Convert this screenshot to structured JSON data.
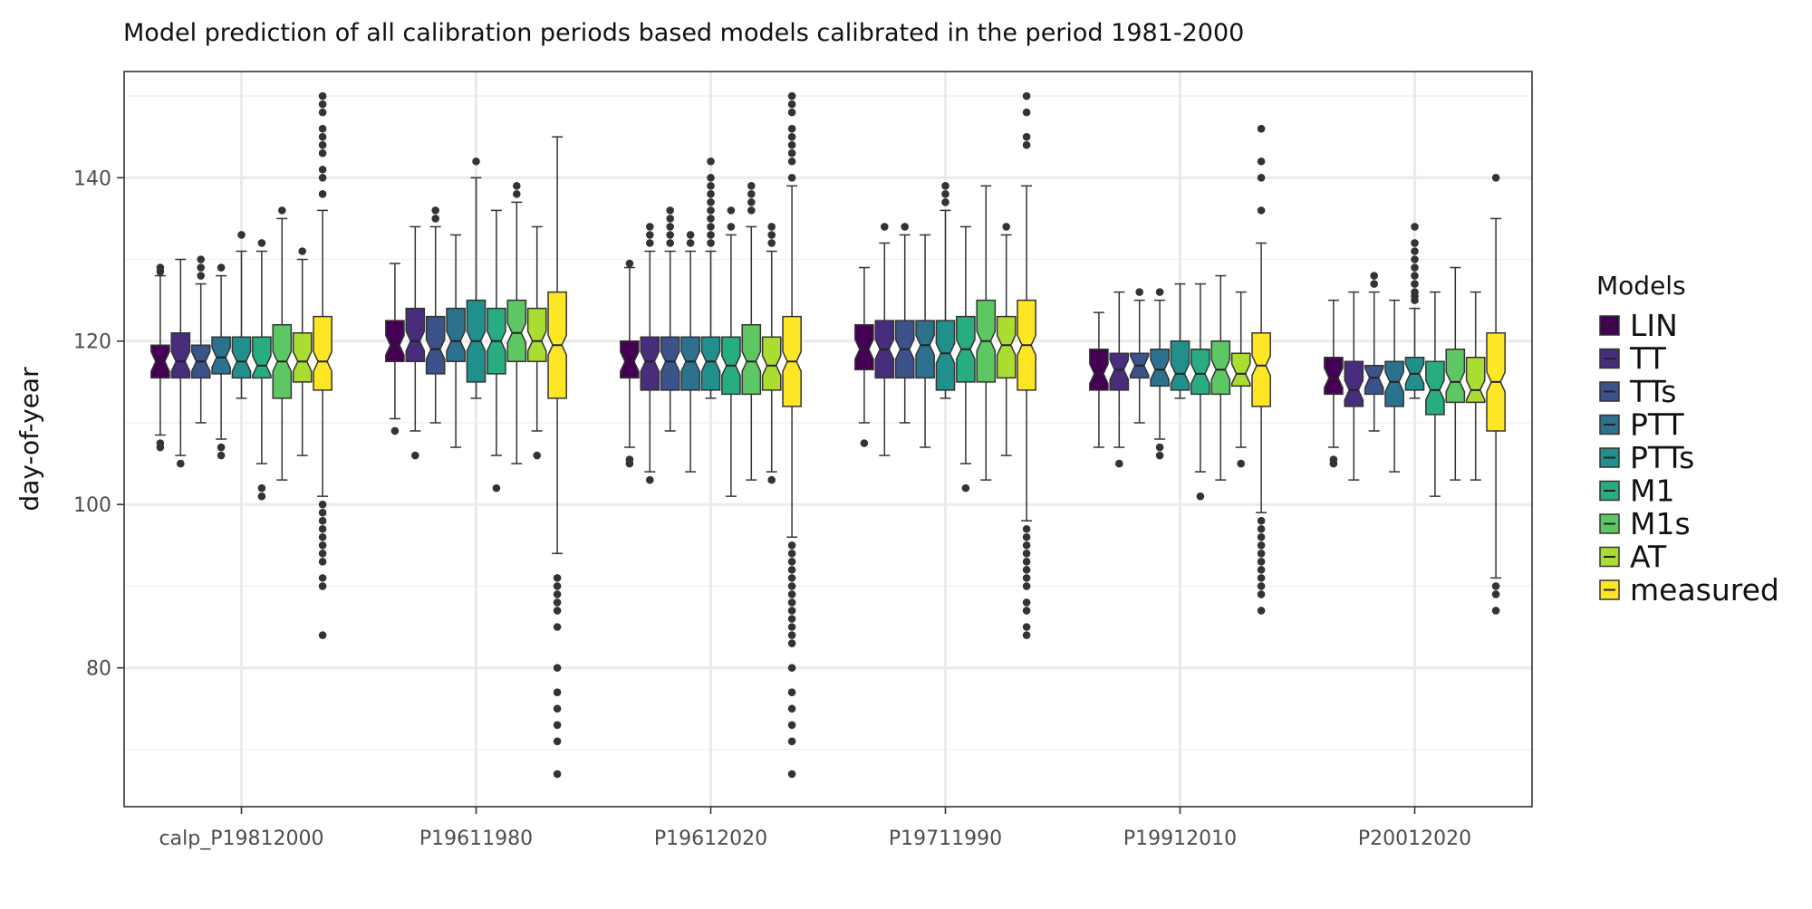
{
  "chart_data": {
    "type": "boxplot",
    "title": "Model prediction of all calibration periods based models calibrated in the period 1981-2000",
    "xlabel": "",
    "ylabel": "day-of-year",
    "ylim": [
      63,
      153
    ],
    "yticks": [
      80,
      100,
      120,
      140
    ],
    "grid": true,
    "notched": true,
    "legend": {
      "title": "Models",
      "position": "right"
    },
    "series": [
      {
        "name": "LIN",
        "color": "#440154"
      },
      {
        "name": "TT",
        "color": "#472D7B"
      },
      {
        "name": "TTs",
        "color": "#3B528B"
      },
      {
        "name": "PTT",
        "color": "#2C728E"
      },
      {
        "name": "PTTs",
        "color": "#21908C"
      },
      {
        "name": "M1",
        "color": "#27AD81"
      },
      {
        "name": "M1s",
        "color": "#5DC863"
      },
      {
        "name": "AT",
        "color": "#AADC32"
      },
      {
        "name": "measured",
        "color": "#FDE725"
      }
    ],
    "categories": [
      "calp_P19812000",
      "P19611980",
      "P19612020",
      "P19711990",
      "P19912010",
      "P20012020"
    ],
    "groups": [
      {
        "category": "calp_P19812000",
        "boxes": [
          {
            "series": "LIN",
            "whisker_low": 108.5,
            "q1": 115.5,
            "median": 117.5,
            "q3": 119.5,
            "whisker_high": 128,
            "outliers": [
              107,
              107.5,
              128.5,
              129
            ]
          },
          {
            "series": "TT",
            "whisker_low": 106,
            "q1": 115.5,
            "median": 117.5,
            "q3": 121,
            "whisker_high": 130,
            "outliers": [
              105
            ]
          },
          {
            "series": "TTs",
            "whisker_low": 110,
            "q1": 115.5,
            "median": 117.5,
            "q3": 119.5,
            "whisker_high": 127,
            "outliers": [
              128,
              129,
              130
            ]
          },
          {
            "series": "PTT",
            "whisker_low": 108,
            "q1": 116,
            "median": 118,
            "q3": 120.5,
            "whisker_high": 128,
            "outliers": [
              106,
              107,
              129
            ]
          },
          {
            "series": "PTTs",
            "whisker_low": 113,
            "q1": 115.5,
            "median": 117.5,
            "q3": 120.5,
            "whisker_high": 131,
            "outliers": [
              133
            ]
          },
          {
            "series": "M1",
            "whisker_low": 105,
            "q1": 115.5,
            "median": 117,
            "q3": 120.5,
            "whisker_high": 131,
            "outliers": [
              101,
              102,
              132
            ]
          },
          {
            "series": "M1s",
            "whisker_low": 103,
            "q1": 113,
            "median": 117.5,
            "q3": 122,
            "whisker_high": 135,
            "outliers": [
              136
            ]
          },
          {
            "series": "AT",
            "whisker_low": 106,
            "q1": 115,
            "median": 117.5,
            "q3": 121,
            "whisker_high": 130,
            "outliers": [
              131
            ]
          },
          {
            "series": "measured",
            "whisker_low": 101,
            "q1": 114,
            "median": 117.5,
            "q3": 123,
            "whisker_high": 136,
            "outliers": [
              84,
              90,
              91,
              93,
              94,
              95,
              96,
              97,
              98,
              99,
              100,
              138,
              140,
              141,
              143,
              144,
              145,
              146,
              148,
              149,
              150
            ]
          }
        ]
      },
      {
        "category": "P19611980",
        "boxes": [
          {
            "series": "LIN",
            "whisker_low": 110.5,
            "q1": 117.5,
            "median": 119.5,
            "q3": 122.5,
            "whisker_high": 129.5,
            "outliers": [
              109
            ]
          },
          {
            "series": "TT",
            "whisker_low": 109,
            "q1": 117.5,
            "median": 120,
            "q3": 124,
            "whisker_high": 134,
            "outliers": [
              106
            ]
          },
          {
            "series": "TTs",
            "whisker_low": 110,
            "q1": 116,
            "median": 119,
            "q3": 123,
            "whisker_high": 134,
            "outliers": [
              135,
              136
            ]
          },
          {
            "series": "PTT",
            "whisker_low": 107,
            "q1": 117.5,
            "median": 120,
            "q3": 124,
            "whisker_high": 133,
            "outliers": []
          },
          {
            "series": "PTTs",
            "whisker_low": 113,
            "q1": 115,
            "median": 120,
            "q3": 125,
            "whisker_high": 140,
            "outliers": [
              142
            ]
          },
          {
            "series": "M1",
            "whisker_low": 106,
            "q1": 116,
            "median": 120,
            "q3": 124,
            "whisker_high": 136,
            "outliers": [
              102
            ]
          },
          {
            "series": "M1s",
            "whisker_low": 105,
            "q1": 117.5,
            "median": 121,
            "q3": 125,
            "whisker_high": 137,
            "outliers": [
              138,
              139
            ]
          },
          {
            "series": "AT",
            "whisker_low": 109,
            "q1": 117.5,
            "median": 120,
            "q3": 124,
            "whisker_high": 134,
            "outliers": [
              106
            ]
          },
          {
            "series": "measured",
            "whisker_low": 94,
            "q1": 113,
            "median": 119.5,
            "q3": 126,
            "whisker_high": 145,
            "outliers": [
              67,
              71,
              73,
              75,
              77,
              80,
              85,
              87,
              88,
              89,
              90,
              91
            ]
          }
        ]
      },
      {
        "category": "P19612020",
        "boxes": [
          {
            "series": "LIN",
            "whisker_low": 107,
            "q1": 115.5,
            "median": 117.5,
            "q3": 120,
            "whisker_high": 129,
            "outliers": [
              105,
              105.5,
              129.5
            ]
          },
          {
            "series": "TT",
            "whisker_low": 104,
            "q1": 114,
            "median": 117.5,
            "q3": 120.5,
            "whisker_high": 131,
            "outliers": [
              103,
              132,
              133,
              134
            ]
          },
          {
            "series": "TTs",
            "whisker_low": 109,
            "q1": 114,
            "median": 117.5,
            "q3": 120.5,
            "whisker_high": 131,
            "outliers": [
              132,
              133,
              134,
              135,
              136
            ]
          },
          {
            "series": "PTT",
            "whisker_low": 104,
            "q1": 114,
            "median": 117.5,
            "q3": 120.5,
            "whisker_high": 131,
            "outliers": [
              132,
              133
            ]
          },
          {
            "series": "PTTs",
            "whisker_low": 113,
            "q1": 114,
            "median": 117.5,
            "q3": 120.5,
            "whisker_high": 131,
            "outliers": [
              132,
              133,
              134,
              135,
              136,
              137,
              138,
              139,
              140,
              142
            ]
          },
          {
            "series": "M1",
            "whisker_low": 101,
            "q1": 113.5,
            "median": 117,
            "q3": 120.5,
            "whisker_high": 133,
            "outliers": [
              134,
              136
            ]
          },
          {
            "series": "M1s",
            "whisker_low": 103,
            "q1": 113.5,
            "median": 117.5,
            "q3": 122,
            "whisker_high": 134,
            "outliers": [
              136,
              137,
              138,
              139
            ]
          },
          {
            "series": "AT",
            "whisker_low": 104,
            "q1": 114,
            "median": 117,
            "q3": 120.5,
            "whisker_high": 131,
            "outliers": [
              103,
              132,
              133,
              134
            ]
          },
          {
            "series": "measured",
            "whisker_low": 96,
            "q1": 112,
            "median": 117.5,
            "q3": 123,
            "whisker_high": 139,
            "outliers": [
              67,
              71,
              73,
              75,
              77,
              80,
              83,
              84,
              85,
              86,
              87,
              88,
              89,
              90,
              91,
              92,
              93,
              94,
              95,
              140,
              142,
              143,
              144,
              145,
              146,
              148,
              149,
              150
            ]
          }
        ]
      },
      {
        "category": "P19711990",
        "boxes": [
          {
            "series": "LIN",
            "whisker_low": 110,
            "q1": 116.5,
            "median": 119,
            "q3": 122,
            "whisker_high": 129,
            "outliers": [
              107.5
            ]
          },
          {
            "series": "TT",
            "whisker_low": 106,
            "q1": 115.5,
            "median": 119,
            "q3": 122.5,
            "whisker_high": 132,
            "outliers": [
              134
            ]
          },
          {
            "series": "TTs",
            "whisker_low": 110,
            "q1": 115.5,
            "median": 119,
            "q3": 122.5,
            "whisker_high": 133,
            "outliers": [
              134
            ]
          },
          {
            "series": "PTT",
            "whisker_low": 107,
            "q1": 115.5,
            "median": 119.5,
            "q3": 122.5,
            "whisker_high": 133,
            "outliers": []
          },
          {
            "series": "PTTs",
            "whisker_low": 113,
            "q1": 114,
            "median": 118.5,
            "q3": 122.5,
            "whisker_high": 136,
            "outliers": [
              137,
              138,
              139
            ]
          },
          {
            "series": "M1",
            "whisker_low": 105,
            "q1": 115,
            "median": 119,
            "q3": 123,
            "whisker_high": 134,
            "outliers": [
              102
            ]
          },
          {
            "series": "M1s",
            "whisker_low": 103,
            "q1": 115,
            "median": 120,
            "q3": 125,
            "whisker_high": 139,
            "outliers": []
          },
          {
            "series": "AT",
            "whisker_low": 106,
            "q1": 115.5,
            "median": 119.5,
            "q3": 123,
            "whisker_high": 133,
            "outliers": [
              134
            ]
          },
          {
            "series": "measured",
            "whisker_low": 98,
            "q1": 114,
            "median": 119.5,
            "q3": 125,
            "whisker_high": 139,
            "outliers": [
              84,
              85,
              87,
              88,
              90,
              91,
              92,
              93,
              94,
              95,
              96,
              97,
              144,
              145,
              148,
              150
            ]
          }
        ]
      },
      {
        "category": "P19912010",
        "boxes": [
          {
            "series": "LIN",
            "whisker_low": 107,
            "q1": 114,
            "median": 116,
            "q3": 119,
            "whisker_high": 123.5,
            "outliers": []
          },
          {
            "series": "TT",
            "whisker_low": 107,
            "q1": 114,
            "median": 116.5,
            "q3": 118.5,
            "whisker_high": 126,
            "outliers": [
              105
            ]
          },
          {
            "series": "TTs",
            "whisker_low": 110,
            "q1": 115.5,
            "median": 117,
            "q3": 118.5,
            "whisker_high": 125,
            "outliers": [
              126
            ]
          },
          {
            "series": "PTT",
            "whisker_low": 108,
            "q1": 114.5,
            "median": 116.5,
            "q3": 119,
            "whisker_high": 125,
            "outliers": [
              106,
              107,
              126
            ]
          },
          {
            "series": "PTTs",
            "whisker_low": 113,
            "q1": 114,
            "median": 116,
            "q3": 120,
            "whisker_high": 127,
            "outliers": []
          },
          {
            "series": "M1",
            "whisker_low": 104,
            "q1": 113.5,
            "median": 116,
            "q3": 119,
            "whisker_high": 127,
            "outliers": [
              101
            ]
          },
          {
            "series": "M1s",
            "whisker_low": 103,
            "q1": 113.5,
            "median": 116.5,
            "q3": 120,
            "whisker_high": 128,
            "outliers": []
          },
          {
            "series": "AT",
            "whisker_low": 107,
            "q1": 114.5,
            "median": 116,
            "q3": 118.5,
            "whisker_high": 126,
            "outliers": [
              105
            ]
          },
          {
            "series": "measured",
            "whisker_low": 99,
            "q1": 112,
            "median": 117,
            "q3": 121,
            "whisker_high": 132,
            "outliers": [
              87,
              89,
              90,
              91,
              92,
              93,
              94,
              95,
              96,
              97,
              98,
              136,
              140,
              142,
              146
            ]
          }
        ]
      },
      {
        "category": "P20012020",
        "boxes": [
          {
            "series": "LIN",
            "whisker_low": 107,
            "q1": 113.5,
            "median": 115.5,
            "q3": 118,
            "whisker_high": 125,
            "outliers": [
              105,
              105.5
            ]
          },
          {
            "series": "TT",
            "whisker_low": 103,
            "q1": 112,
            "median": 114,
            "q3": 117.5,
            "whisker_high": 126,
            "outliers": []
          },
          {
            "series": "TTs",
            "whisker_low": 109,
            "q1": 113.5,
            "median": 115.5,
            "q3": 117,
            "whisker_high": 126,
            "outliers": [
              127,
              128
            ]
          },
          {
            "series": "PTT",
            "whisker_low": 104,
            "q1": 112,
            "median": 115,
            "q3": 117.5,
            "whisker_high": 125,
            "outliers": []
          },
          {
            "series": "PTTs",
            "whisker_low": 113,
            "q1": 114,
            "median": 116,
            "q3": 118,
            "whisker_high": 124,
            "outliers": [
              125,
              125.5,
              126,
              127,
              128,
              129,
              130,
              131,
              132,
              134
            ]
          },
          {
            "series": "M1",
            "whisker_low": 101,
            "q1": 111,
            "median": 114,
            "q3": 117.5,
            "whisker_high": 126,
            "outliers": []
          },
          {
            "series": "M1s",
            "whisker_low": 103,
            "q1": 112.5,
            "median": 115,
            "q3": 119,
            "whisker_high": 129,
            "outliers": []
          },
          {
            "series": "AT",
            "whisker_low": 103,
            "q1": 112.5,
            "median": 114,
            "q3": 118,
            "whisker_high": 126,
            "outliers": []
          },
          {
            "series": "measured",
            "whisker_low": 91,
            "q1": 109,
            "median": 115,
            "q3": 121,
            "whisker_high": 135,
            "outliers": [
              87,
              89,
              90,
              140
            ]
          }
        ]
      }
    ]
  }
}
